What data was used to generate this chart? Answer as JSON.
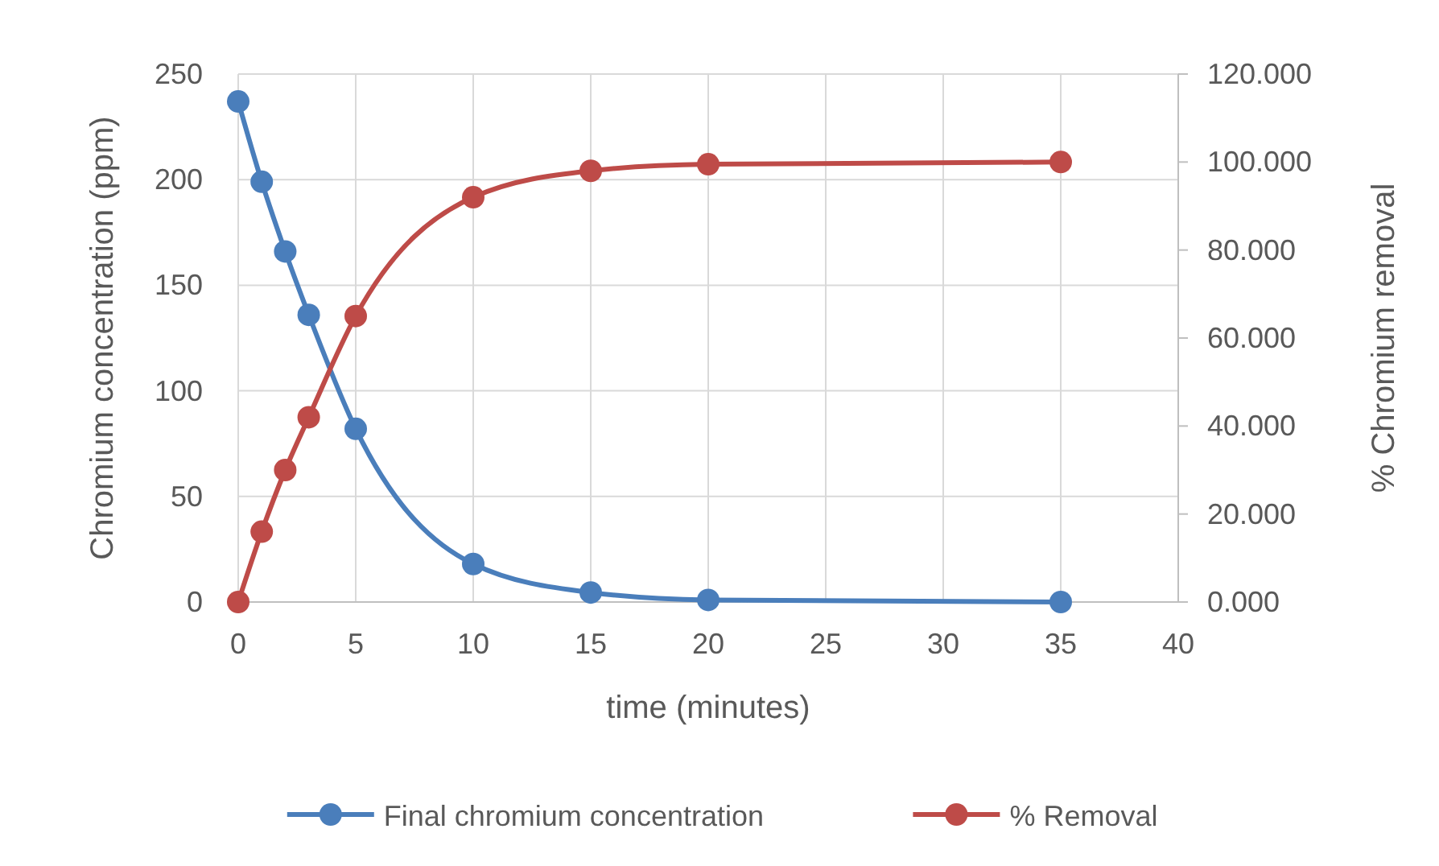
{
  "chart_data": {
    "type": "line",
    "xlabel": "time (minutes)",
    "ylabel": "Chromium concentration (ppm)",
    "y2label": "% Chromium removal",
    "xlim": [
      0,
      40
    ],
    "xticks": [
      0,
      5,
      10,
      15,
      20,
      25,
      30,
      35,
      40
    ],
    "ylim": [
      0,
      250
    ],
    "yticks": [
      0,
      50,
      100,
      150,
      200,
      250
    ],
    "y2lim": [
      0,
      120
    ],
    "y2ticks": [
      {
        "value": 0,
        "label": "0.000"
      },
      {
        "value": 20,
        "label": "20.000"
      },
      {
        "value": 40,
        "label": "40.000"
      },
      {
        "value": 60,
        "label": "60.000"
      },
      {
        "value": 80,
        "label": "80.000"
      },
      {
        "value": 100,
        "label": "100.000"
      },
      {
        "value": 120,
        "label": "120.000"
      }
    ],
    "x": [
      0,
      1,
      2,
      3,
      5,
      10,
      15,
      20,
      35
    ],
    "series": [
      {
        "name": "Final chromium concentration",
        "color": "#4a7ebb",
        "values": [
          237,
          199,
          166,
          136,
          82,
          18,
          4.5,
          1,
          0
        ]
      },
      {
        "name": "% Removal",
        "color": "#be4b48",
        "axis": "y2",
        "values": [
          0,
          16,
          30,
          42,
          65,
          92,
          98,
          99.5,
          100
        ]
      }
    ],
    "grid": true,
    "legend": "bottom",
    "marker": "circle",
    "line_style": "solid"
  }
}
